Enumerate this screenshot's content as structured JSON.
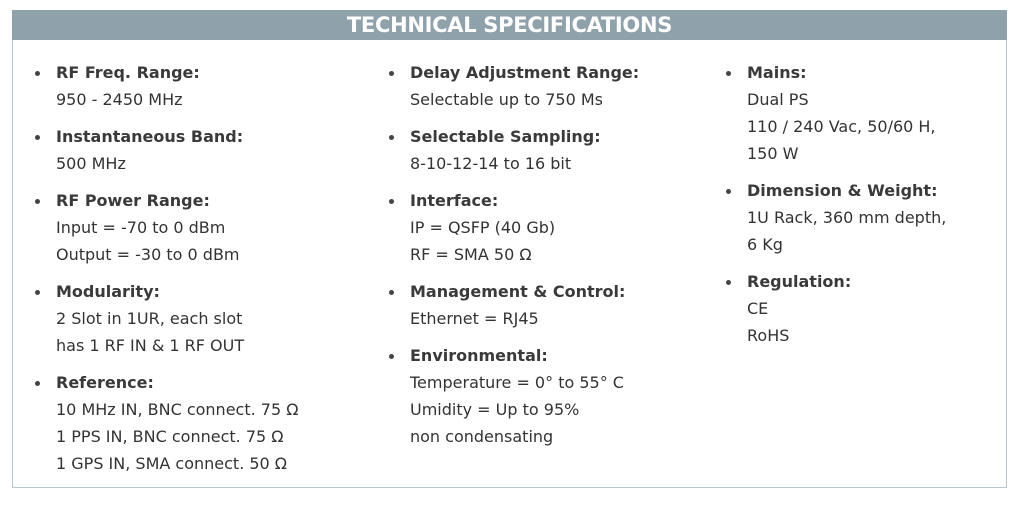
{
  "header": {
    "title": "TECHNICAL SPECIFICATIONS"
  },
  "columns": [
    {
      "items": [
        {
          "label": "RF Freq. Range:",
          "lines": [
            "950 - 2450 MHz"
          ]
        },
        {
          "label": "Instantaneous Band:",
          "lines": [
            "500 MHz"
          ]
        },
        {
          "label": "RF Power Range:",
          "lines": [
            "Input = -70 to 0 dBm",
            "Output = -30 to 0 dBm"
          ]
        },
        {
          "label": "Modularity:",
          "lines": [
            "2 Slot in 1UR, each slot",
            "has 1 RF IN & 1 RF OUT"
          ]
        },
        {
          "label": "Reference:",
          "lines": [
            "10 MHz IN, BNC connect. 75 Ω",
            "1 PPS IN, BNC connect. 75 Ω",
            "1 GPS IN, SMA connect. 50 Ω"
          ]
        }
      ]
    },
    {
      "items": [
        {
          "label": "Delay Adjustment Range:",
          "lines": [
            "Selectable up to 750 Ms"
          ]
        },
        {
          "label": "Selectable Sampling:",
          "lines": [
            "8-10-12-14 to 16 bit"
          ]
        },
        {
          "label": "Interface:",
          "lines": [
            "IP =  QSFP (40 Gb)",
            "RF =  SMA 50 Ω"
          ]
        },
        {
          "label": "Management & Control:",
          "lines": [
            "Ethernet = RJ45"
          ]
        },
        {
          "label": "Environmental:",
          "lines": [
            "Temperature = 0° to 55° C",
            "Umidity = Up to 95%",
            "non condensating"
          ]
        }
      ]
    },
    {
      "items": [
        {
          "label": "Mains:",
          "lines": [
            "Dual PS",
            "110 / 240 Vac, 50/60 H,",
            "150 W"
          ]
        },
        {
          "label": "Dimension & Weight:",
          "lines": [
            "1U Rack, 360 mm depth,",
            "6 Kg"
          ]
        },
        {
          "label": "Regulation:",
          "lines": [
            "CE",
            "RoHS"
          ]
        }
      ]
    }
  ]
}
